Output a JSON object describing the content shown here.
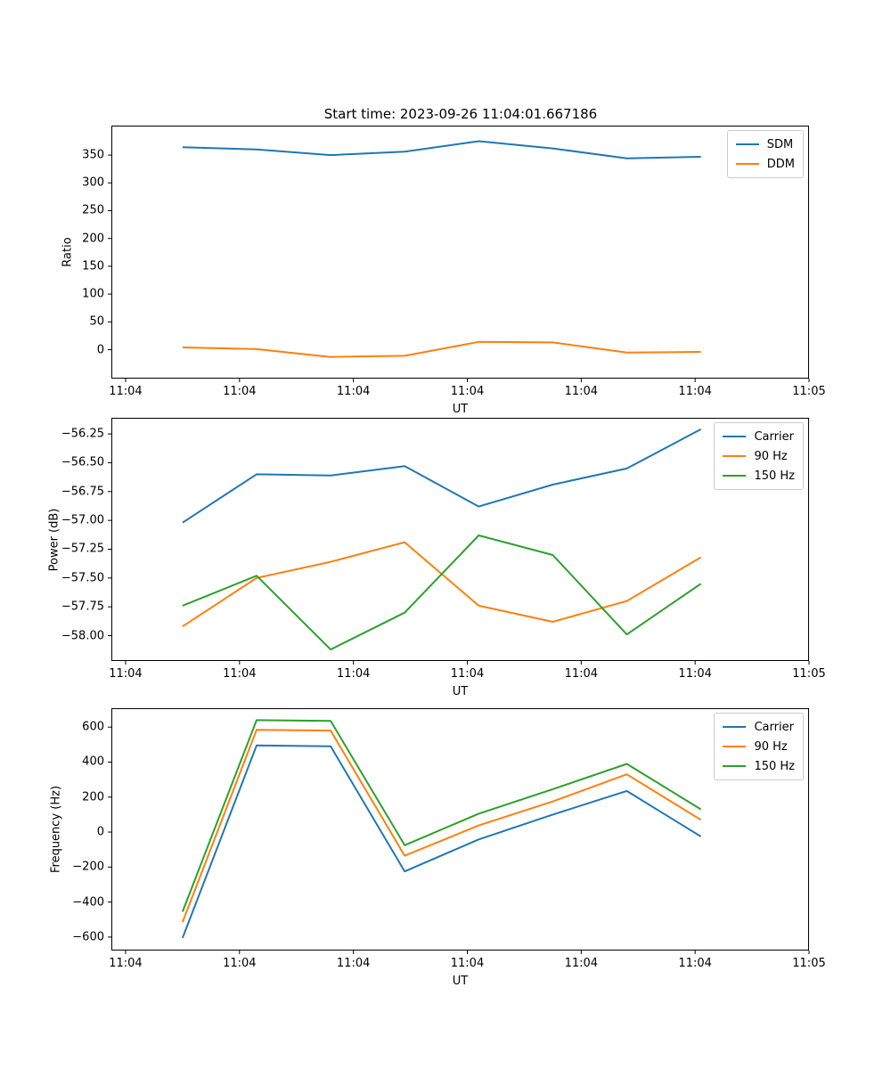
{
  "title": "Start time: 2023-09-26 11:04:01.667186",
  "colors": {
    "blue": "#1f77b4",
    "orange": "#ff7f0e",
    "green": "#2ca02c",
    "spine": "#000000",
    "legend_border": "#cccccc"
  },
  "chart_data": [
    {
      "key": "ratio",
      "type": "line",
      "ylabel": "Ratio",
      "xlabel": "UT",
      "x": [
        5,
        11.5,
        18,
        24.5,
        31,
        37.5,
        44,
        50.5
      ],
      "xlim": [
        -1.25,
        60
      ],
      "ylim": [
        -52,
        403
      ],
      "xtick_values": [
        0,
        10,
        20,
        30,
        40,
        50,
        60
      ],
      "xtick_labels": [
        "11:04",
        "11:04",
        "11:04",
        "11:04",
        "11:04",
        "11:04",
        "11:05"
      ],
      "ytick_values": [
        0,
        50,
        100,
        150,
        200,
        250,
        300,
        350
      ],
      "ytick_labels": [
        "0",
        "50",
        "100",
        "150",
        "200",
        "250",
        "300",
        "350"
      ],
      "grid": false,
      "legend_position": "upper right",
      "series": [
        {
          "name": "SDM",
          "color": "#1f77b4",
          "values": [
            364,
            360,
            350,
            356,
            375,
            362,
            344,
            347
          ]
        },
        {
          "name": "DDM",
          "color": "#ff7f0e",
          "values": [
            4,
            1,
            -13,
            -11,
            14,
            13,
            -5,
            -4
          ]
        }
      ]
    },
    {
      "key": "power",
      "type": "line",
      "ylabel": "Power (dB)",
      "xlabel": "UT",
      "x": [
        5,
        11.5,
        18,
        24.5,
        31,
        37.5,
        44,
        50.5
      ],
      "xlim": [
        -1.25,
        60
      ],
      "ylim": [
        -58.22,
        -56.11
      ],
      "xtick_values": [
        0,
        10,
        20,
        30,
        40,
        50,
        60
      ],
      "xtick_labels": [
        "11:04",
        "11:04",
        "11:04",
        "11:04",
        "11:04",
        "11:04",
        "11:05"
      ],
      "ytick_values": [
        -58.0,
        -57.75,
        -57.5,
        -57.25,
        -57.0,
        -56.75,
        -56.5,
        -56.25
      ],
      "ytick_labels": [
        "−58.00",
        "−57.75",
        "−57.50",
        "−57.25",
        "−57.00",
        "−56.75",
        "−56.50",
        "−56.25"
      ],
      "grid": false,
      "legend_position": "upper right",
      "series": [
        {
          "name": "Carrier",
          "color": "#1f77b4",
          "values": [
            -57.02,
            -56.6,
            -56.61,
            -56.53,
            -56.88,
            -56.69,
            -56.55,
            -56.21
          ]
        },
        {
          "name": "90 Hz",
          "color": "#ff7f0e",
          "values": [
            -57.92,
            -57.5,
            -57.36,
            -57.19,
            -57.74,
            -57.88,
            -57.7,
            -57.32
          ]
        },
        {
          "name": "150 Hz",
          "color": "#2ca02c",
          "values": [
            -57.74,
            -57.48,
            -58.12,
            -57.8,
            -57.13,
            -57.3,
            -57.99,
            -57.55
          ]
        }
      ]
    },
    {
      "key": "frequency",
      "type": "line",
      "ylabel": "Frequency (Hz)",
      "xlabel": "UT",
      "x": [
        5,
        11.5,
        18,
        24.5,
        31,
        37.5,
        44,
        50.5
      ],
      "xlim": [
        -1.25,
        60
      ],
      "ylim": [
        -677,
        708
      ],
      "xtick_values": [
        0,
        10,
        20,
        30,
        40,
        50,
        60
      ],
      "xtick_labels": [
        "11:04",
        "11:04",
        "11:04",
        "11:04",
        "11:04",
        "11:04",
        "11:05"
      ],
      "ytick_values": [
        -600,
        -400,
        -200,
        0,
        200,
        400,
        600
      ],
      "ytick_labels": [
        "−600",
        "−400",
        "−200",
        "0",
        "200",
        "400",
        "600"
      ],
      "grid": false,
      "legend_position": "upper right",
      "series": [
        {
          "name": "Carrier",
          "color": "#1f77b4",
          "values": [
            -605,
            495,
            490,
            -225,
            -42,
            100,
            235,
            -25
          ]
        },
        {
          "name": "90 Hz",
          "color": "#ff7f0e",
          "values": [
            -515,
            585,
            580,
            -135,
            38,
            175,
            330,
            70
          ]
        },
        {
          "name": "150 Hz",
          "color": "#2ca02c",
          "values": [
            -455,
            640,
            635,
            -75,
            105,
            245,
            390,
            130
          ]
        }
      ]
    }
  ]
}
